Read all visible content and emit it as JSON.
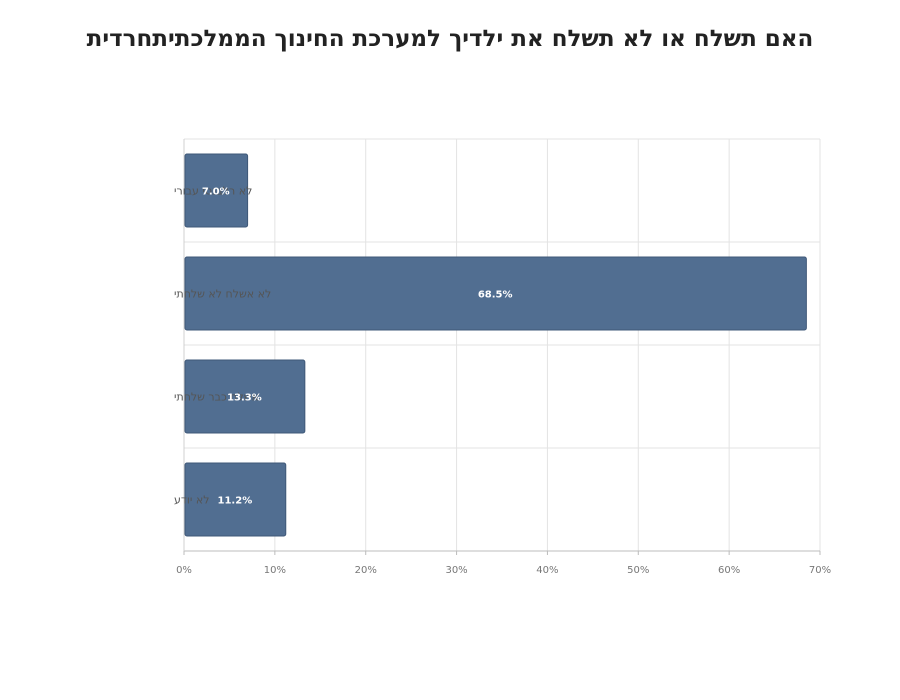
{
  "chart_data": {
    "type": "bar",
    "orientation": "horizontal",
    "title": "האם תשלח או לא תשלח את ילדיך למערכת החינוך הממלכתיתחרדית",
    "categories": [
      "לא רלבנטי עבורי",
      "לא אשלח לא שלחתי",
      "אשלח כבר שלחתי",
      "לא יודע"
    ],
    "values": [
      7.0,
      68.5,
      13.3,
      11.2
    ],
    "value_labels": [
      "7.0%",
      "68.5%",
      "13.3%",
      "11.2%"
    ],
    "xlim": [
      0,
      70
    ],
    "xticks": [
      0,
      10,
      20,
      30,
      40,
      50,
      60,
      70
    ],
    "xtick_labels": [
      "0%",
      "10%",
      "20%",
      "30%",
      "40%",
      "50%",
      "60%",
      "70%"
    ],
    "xlabel": "",
    "ylabel": "",
    "grid": true,
    "bar_color": "#516e91",
    "bar_edge_color": "#3f5878"
  }
}
